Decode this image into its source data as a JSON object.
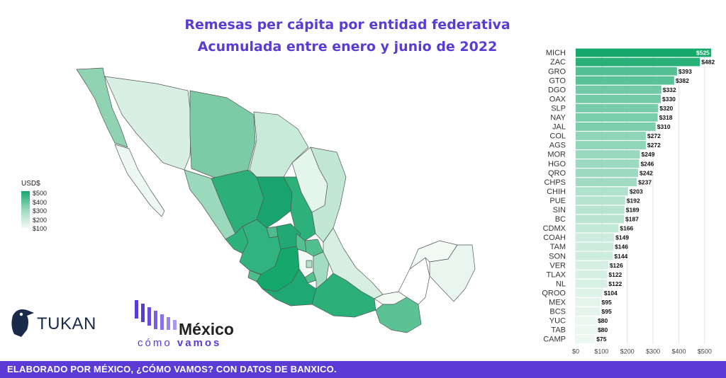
{
  "title_line1": "Remesas per cápita por entidad federativa",
  "title_line2": "Acumulada entre enero y junio de 2022",
  "legend": {
    "title": "USD$",
    "ticks": [
      "$500",
      "$400",
      "$300",
      "$200",
      "$100"
    ]
  },
  "footer": "ELABORADO POR MÉXICO, ¿CÓMO VAMOS? CON DATOS DE BANXICO.",
  "logos": {
    "tukan": "TUKAN",
    "mexico": "México",
    "como": "cómo",
    "vamos": "vamos"
  },
  "colors": {
    "accent": "#5b3bd6",
    "bar_high": "#14a86b",
    "bar_low": "#eef8f3",
    "footer_bg": "#5b3bd6"
  },
  "chart_data": {
    "type": "bar",
    "orientation": "horizontal",
    "categories": [
      "MICH",
      "ZAC",
      "GRO",
      "GTO",
      "DGO",
      "OAX",
      "SLP",
      "NAY",
      "JAL",
      "COL",
      "AGS",
      "MOR",
      "HGO",
      "QRO",
      "CHPS",
      "CHIH",
      "PUE",
      "SIN",
      "BC",
      "CDMX",
      "COAH",
      "TAM",
      "SON",
      "VER",
      "TLAX",
      "NL",
      "QROO",
      "MEX",
      "BCS",
      "YUC",
      "TAB",
      "CAMP"
    ],
    "values": [
      525,
      482,
      393,
      382,
      332,
      330,
      320,
      318,
      310,
      272,
      272,
      249,
      246,
      242,
      237,
      203,
      192,
      189,
      187,
      166,
      149,
      146,
      144,
      126,
      122,
      122,
      104,
      95,
      95,
      80,
      80,
      75
    ],
    "labels": [
      "$525",
      "$482",
      "$393",
      "$382",
      "$332",
      "$330",
      "$320",
      "$318",
      "$310",
      "$272",
      "$272",
      "$249",
      "$246",
      "$242",
      "$237",
      "$203",
      "$192",
      "$189",
      "$187",
      "$166",
      "$149",
      "$146",
      "$144",
      "$126",
      "$122",
      "$122",
      "$104",
      "$95",
      "$95",
      "$80",
      "$80",
      "$75"
    ],
    "x_ticks": [
      "$0",
      "$100",
      "$200",
      "$300",
      "$400",
      "$500"
    ],
    "xlim": [
      0,
      550
    ],
    "grid": true
  }
}
